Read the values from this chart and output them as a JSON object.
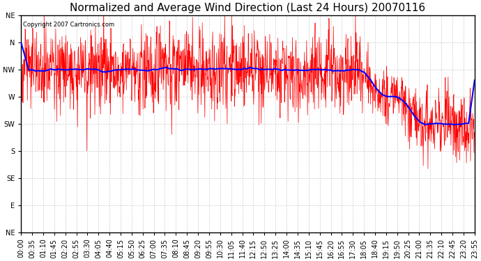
{
  "title": "Normalized and Average Wind Direction (Last 24 Hours) 20070116",
  "copyright": "Copyright 2007 Cartronics.com",
  "background_color": "#ffffff",
  "plot_bg_color": "#ffffff",
  "grid_color": "#cccccc",
  "ytick_labels": [
    "NE",
    "N",
    "NW",
    "W",
    "SW",
    "S",
    "SE",
    "E",
    "NE"
  ],
  "ytick_values": [
    0,
    45,
    90,
    135,
    180,
    225,
    270,
    315,
    360
  ],
  "ylim": [
    360,
    0
  ],
  "red_line_color": "#ff0000",
  "blue_line_color": "#0000ff",
  "title_fontsize": 11,
  "tick_fontsize": 7,
  "xtick_labels": [
    "00:00",
    "00:35",
    "01:10",
    "01:45",
    "02:20",
    "02:55",
    "03:30",
    "04:05",
    "04:40",
    "05:15",
    "05:50",
    "06:25",
    "07:00",
    "07:35",
    "08:10",
    "08:45",
    "09:20",
    "09:55",
    "10:30",
    "11:05",
    "11:40",
    "12:15",
    "12:50",
    "13:25",
    "14:00",
    "14:35",
    "15:10",
    "15:45",
    "16:20",
    "16:55",
    "17:30",
    "18:05",
    "18:40",
    "19:15",
    "19:50",
    "20:25",
    "21:00",
    "21:35",
    "22:10",
    "22:45",
    "23:20",
    "23:55"
  ]
}
